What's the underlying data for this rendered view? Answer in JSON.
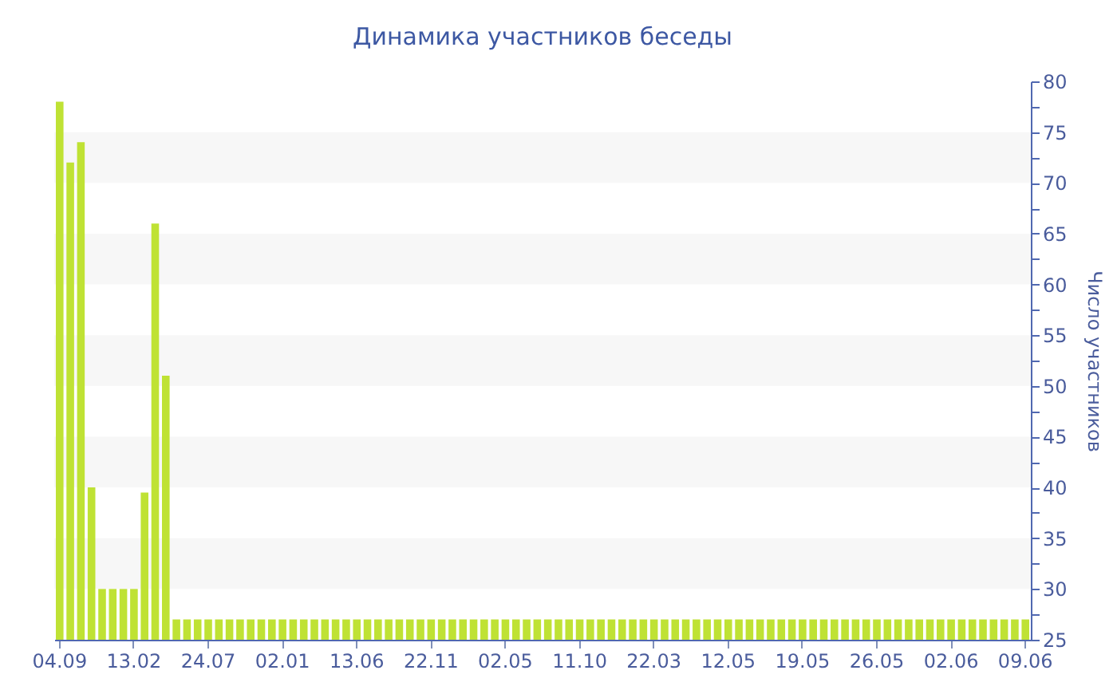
{
  "chart_data": {
    "type": "bar",
    "title": "Динамика участников беседы",
    "ylabel": "Число участников",
    "categories": [
      "04.09",
      null,
      null,
      null,
      null,
      null,
      null,
      "13.02",
      null,
      null,
      null,
      null,
      null,
      null,
      "24.07",
      null,
      null,
      null,
      null,
      null,
      null,
      "02.01",
      null,
      null,
      null,
      null,
      null,
      null,
      "13.06",
      null,
      null,
      null,
      null,
      null,
      null,
      "22.11",
      null,
      null,
      null,
      null,
      null,
      null,
      "02.05",
      null,
      null,
      null,
      null,
      null,
      null,
      "11.10",
      null,
      null,
      null,
      null,
      null,
      null,
      "22.03",
      null,
      null,
      null,
      null,
      null,
      null,
      "12.05",
      null,
      null,
      null,
      null,
      null,
      null,
      "19.05",
      null,
      null,
      null,
      null,
      null,
      null,
      "26.05",
      null,
      null,
      null,
      null,
      null,
      null,
      "02.06",
      null,
      null,
      null,
      null,
      null,
      null,
      "09.06"
    ],
    "values": [
      78,
      72,
      74,
      40,
      30,
      30,
      30,
      30,
      39.5,
      66,
      51,
      27,
      27,
      27,
      27,
      27,
      27,
      27,
      27,
      27,
      27,
      27,
      27,
      27,
      27,
      27,
      27,
      27,
      27,
      27,
      27,
      27,
      27,
      27,
      27,
      27,
      27,
      27,
      27,
      27,
      27,
      27,
      27,
      27,
      27,
      27,
      27,
      27,
      27,
      27,
      27,
      27,
      27,
      27,
      27,
      27,
      27,
      27,
      27,
      27,
      27,
      27,
      27,
      27,
      27,
      27,
      27,
      27,
      27,
      27,
      27,
      27,
      27,
      27,
      27,
      27,
      27,
      27,
      27,
      27,
      27,
      27,
      27,
      27,
      27,
      27,
      27,
      27,
      27,
      27,
      27,
      27
    ],
    "color": "#bfe234",
    "ylim": [
      25,
      80
    ],
    "yticks": [
      25,
      {
        "value": 27.5,
        "label": null
      },
      30,
      {
        "value": 32.5,
        "label": null
      },
      35,
      {
        "value": 37.5,
        "label": null
      },
      40,
      {
        "value": 42.5,
        "label": null
      },
      45,
      {
        "value": 47.5,
        "label": null
      },
      50,
      {
        "value": 52.5,
        "label": null
      },
      55,
      {
        "value": 57.5,
        "label": null
      },
      60,
      {
        "value": 62.5,
        "label": null
      },
      65,
      {
        "value": 67.5,
        "label": null
      },
      70,
      {
        "value": 72.5,
        "label": null
      },
      75,
      {
        "value": 77.5,
        "label": null
      },
      80
    ],
    "bands": [
      {
        "axis": "y",
        "from": 30,
        "to": 35,
        "color": "#f7f7f7"
      },
      {
        "axis": "y",
        "from": 40,
        "to": 45,
        "color": "#f7f7f7"
      },
      {
        "axis": "y",
        "from": 50,
        "to": 55,
        "color": "#f7f7f7"
      },
      {
        "axis": "y",
        "from": 60,
        "to": 65,
        "color": "#f7f7f7"
      },
      {
        "axis": "y",
        "from": 70,
        "to": 75,
        "color": "#f7f7f7"
      }
    ]
  }
}
